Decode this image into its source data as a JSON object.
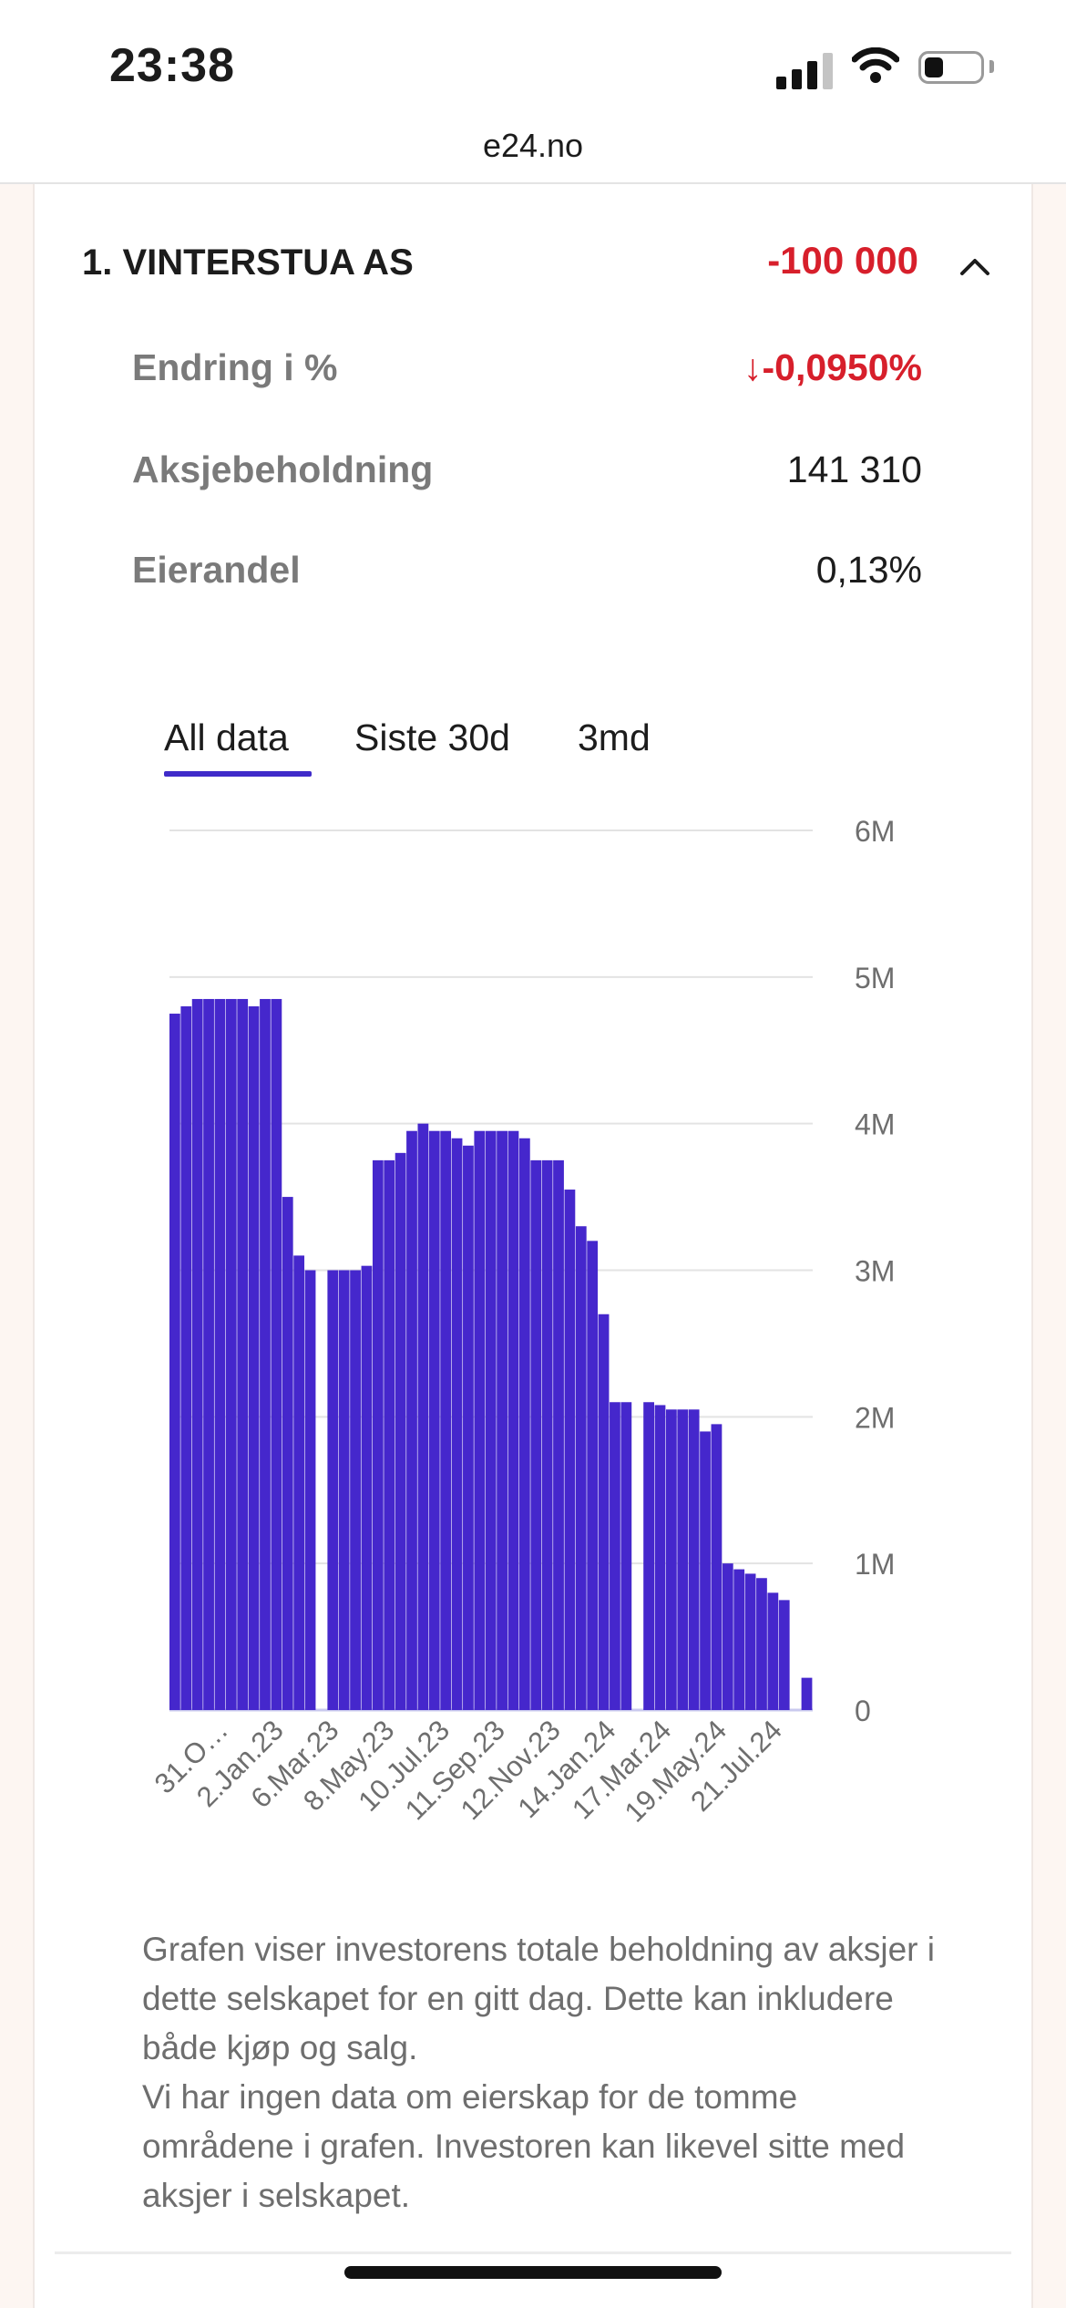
{
  "status_bar": {
    "time": "23:38",
    "battery_percent": 30
  },
  "browser": {
    "url": "e24.no"
  },
  "holder": {
    "rank_name": "1. VINTERSTUA AS",
    "change": "-100 000",
    "details": [
      {
        "label": "Endring i %",
        "value": "-0,0950%",
        "arrow": "↓"
      },
      {
        "label": "Aksjebeholdning",
        "value": "141 310"
      },
      {
        "label": "Eierandel",
        "value": "0,13%"
      }
    ]
  },
  "tabs": [
    {
      "label": "All data",
      "active": true
    },
    {
      "label": "Siste 30d",
      "active": false
    },
    {
      "label": "3md",
      "active": false
    }
  ],
  "chart_data": {
    "type": "area",
    "title": "",
    "xlabel": "",
    "ylabel": "",
    "ylim": [
      0,
      6000000
    ],
    "y_ticks": [
      "0",
      "1M",
      "2M",
      "3M",
      "4M",
      "5M",
      "6M"
    ],
    "x_ticks": [
      "31.O…",
      "2.Jan.23",
      "6.Mar.23",
      "8.May.23",
      "10.Jul.23",
      "11.Sep.23",
      "12.Nov.23",
      "14.Jan.24",
      "17.Mar.24",
      "19.May.24",
      "21.Jul.24"
    ],
    "grid": true,
    "color": "#4527cc",
    "series": [
      {
        "values": [
          4750000,
          4800000,
          4850000,
          4850000,
          4850000,
          4850000,
          4850000,
          4800000,
          4850000,
          4850000,
          3500000,
          3100000,
          3000000,
          0,
          3000000,
          3000000,
          3000000,
          3030000,
          3750000,
          3750000,
          3800000,
          3950000,
          4000000,
          3950000,
          3950000,
          3900000,
          3850000,
          3950000,
          3950000,
          3950000,
          3950000,
          3900000,
          3750000,
          3750000,
          3750000,
          3550000,
          3300000,
          3200000,
          2700000,
          2100000,
          2100000,
          0,
          2100000,
          2080000,
          2050000,
          2050000,
          2050000,
          1900000,
          1950000,
          1000000,
          960000,
          930000,
          900000,
          800000,
          750000,
          0,
          220000
        ]
      }
    ]
  },
  "caption": {
    "line1": "Grafen viser investorens totale beholdning av aksjer i dette selskapet for en gitt dag. Dette kan inkludere både kjøp og salg.",
    "line2": "Vi har ingen data om eierskap for de tomme områdene i grafen. Investoren kan likevel sitte med aksjer i selskapet."
  }
}
